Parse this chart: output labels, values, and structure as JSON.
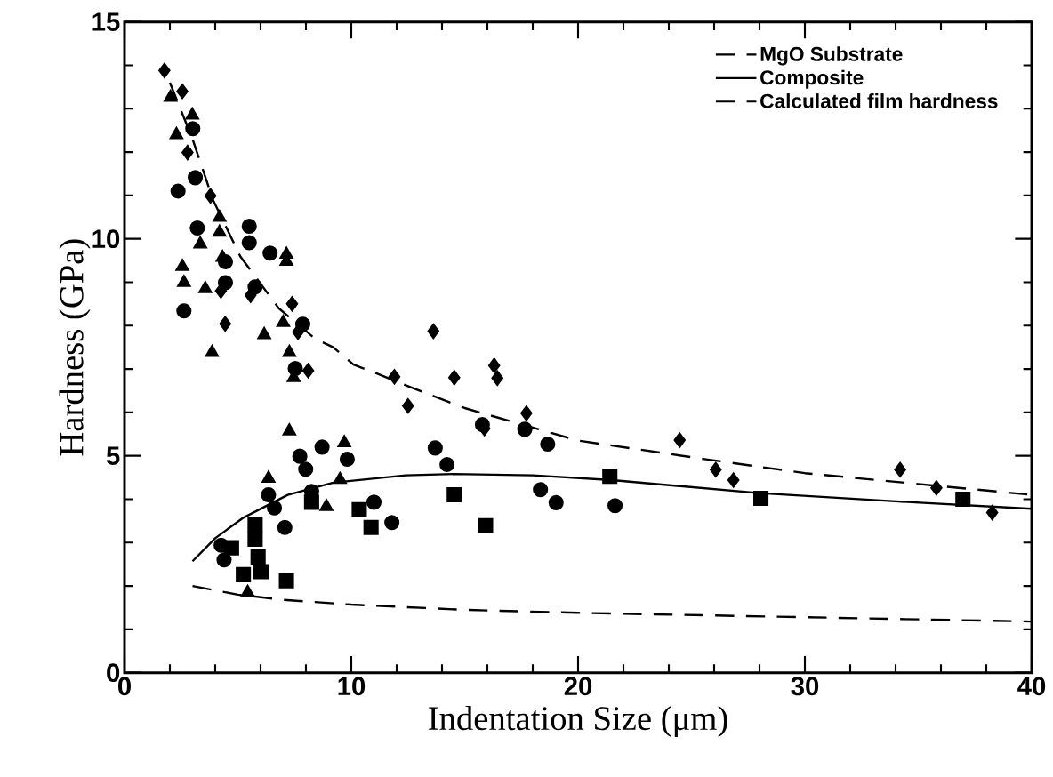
{
  "chart_data": {
    "type": "scatter",
    "xlabel": "Indentation Size (μm)",
    "ylabel": "Hardness (GPa)",
    "xlim": [
      0,
      40
    ],
    "ylim": [
      0,
      15
    ],
    "xticks": [
      0,
      10,
      20,
      30,
      40
    ],
    "yticks": [
      0,
      5,
      10,
      15
    ],
    "grid": false,
    "legend": "top right",
    "series": [
      {
        "marker": "diamond",
        "color": "#000000",
        "x": [
          1.76,
          2.55,
          2.78,
          3.79,
          4.44,
          4.25,
          5.56,
          7.39,
          7.65,
          8.1,
          11.9,
          12.5,
          13.62,
          14.54,
          16.3,
          16.44,
          17.72,
          15.87,
          24.48,
          26.07,
          26.85,
          34.2,
          35.8,
          38.26
        ],
        "values": [
          13.88,
          13.4,
          11.99,
          10.99,
          8.04,
          8.8,
          8.7,
          8.5,
          7.85,
          6.96,
          6.82,
          6.15,
          7.87,
          6.8,
          7.08,
          6.79,
          5.98,
          5.63,
          5.36,
          4.68,
          4.44,
          4.68,
          4.26,
          3.69
        ]
      },
      {
        "marker": "circle",
        "color": "#000000",
        "x": [
          3.01,
          3.12,
          2.36,
          3.21,
          5.5,
          5.5,
          6.42,
          4.45,
          4.45,
          2.62,
          7.86,
          7.53,
          5.76,
          11.79
        ],
        "values": [
          12.54,
          11.41,
          11.1,
          10.25,
          10.29,
          9.91,
          9.67,
          8.99,
          9.47,
          8.34,
          8.03,
          7.01,
          8.89,
          3.46
        ]
      },
      {
        "marker": "triangle",
        "color": "#000000",
        "x": [
          2.29,
          2.99,
          2.55,
          2.62,
          3.56,
          3.34,
          3.86,
          4.19,
          4.19,
          7.14,
          6.16,
          7.0,
          7.27,
          7.46,
          7.27
        ],
        "values": [
          12.4,
          12.85,
          9.36,
          8.99,
          8.85,
          9.88,
          7.38,
          10.49,
          10.15,
          9.48,
          7.79,
          8.07,
          7.38,
          6.8,
          5.57
        ]
      },
      {
        "marker": "triangle",
        "color": "#000000",
        "x": [
          2.03,
          4.32,
          7.14,
          9.69,
          6.35,
          8.9,
          9.5,
          5.43
        ],
        "values": [
          13.26,
          9.57,
          9.64,
          5.3,
          4.48,
          3.83,
          4.45,
          1.85
        ]
      },
      {
        "marker": "circle",
        "color": "#000000",
        "x": [
          7.73,
          7.99,
          8.71,
          9.82,
          6.35,
          6.61,
          8.25,
          11.0,
          4.26,
          4.39,
          14.22,
          15.78,
          17.65,
          18.66,
          18.34,
          19.03,
          21.63,
          13.7,
          7.07
        ],
        "values": [
          4.99,
          4.69,
          5.2,
          4.92,
          4.1,
          3.8,
          4.18,
          3.93,
          2.94,
          2.6,
          4.8,
          5.72,
          5.61,
          5.27,
          4.22,
          3.92,
          3.85,
          5.18,
          3.35
        ]
      },
      {
        "marker": "square",
        "color": "#000000",
        "x": [
          8.25,
          10.35,
          10.87,
          4.72,
          5.76,
          5.76,
          5.89,
          6.02,
          5.24,
          7.14,
          14.54,
          15.92,
          21.4,
          28.06,
          36.97
        ],
        "values": [
          3.93,
          3.76,
          3.35,
          2.88,
          3.42,
          3.08,
          2.67,
          2.33,
          2.26,
          2.12,
          4.1,
          3.39,
          4.53,
          4.02,
          4.0
        ]
      },
      {
        "type": "line",
        "name": "MgO Substrate",
        "line_style": "dashed",
        "color": "#000000",
        "x": [
          2.0,
          3.0,
          3.9,
          5.1,
          6.8,
          8.4,
          9.2,
          10.1,
          11.1,
          13,
          15,
          20,
          25.5,
          30,
          35,
          40
        ],
        "values": [
          13.6,
          12.3,
          10.9,
          9.6,
          8.4,
          7.7,
          7.5,
          7.1,
          6.9,
          6.5,
          6.1,
          5.35,
          4.93,
          4.6,
          4.35,
          4.1
        ]
      },
      {
        "type": "line",
        "name": "Composite",
        "line_style": "solid",
        "color": "#000000",
        "x": [
          3.0,
          4,
          5.2,
          7.2,
          9.2,
          12.4,
          14.5,
          18,
          21.5,
          28,
          34,
          40
        ],
        "values": [
          2.57,
          3.1,
          3.56,
          4.1,
          4.38,
          4.55,
          4.58,
          4.55,
          4.44,
          4.14,
          3.95,
          3.78
        ]
      },
      {
        "type": "line",
        "name": "Calculated film hardness",
        "line_style": "dashed",
        "color": "#000000",
        "x": [
          3,
          5,
          7,
          10,
          15,
          20,
          30,
          40
        ],
        "values": [
          2.0,
          1.8,
          1.68,
          1.57,
          1.45,
          1.38,
          1.28,
          1.18
        ]
      }
    ]
  }
}
